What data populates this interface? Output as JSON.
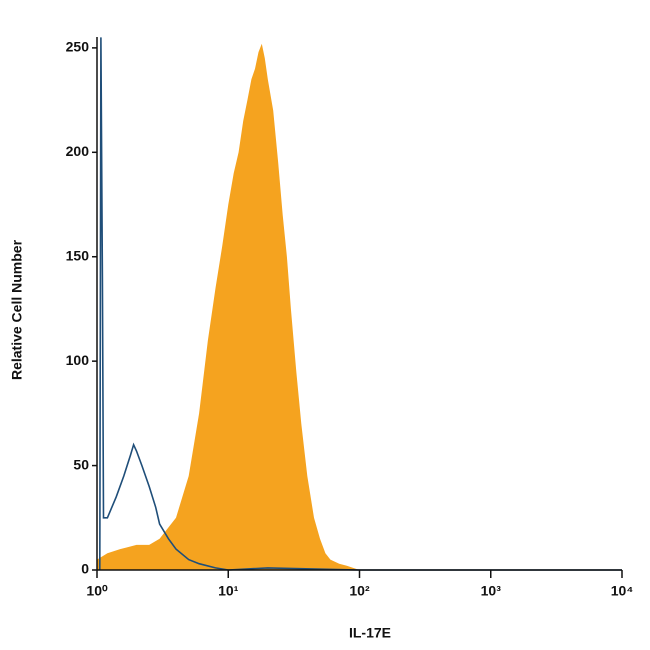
{
  "chart_data": {
    "type": "histogram-overlay",
    "x_label": "IL-17E",
    "y_label": "Relative Cell Number",
    "xlog": true,
    "xlim": [
      1,
      10000
    ],
    "xticks": [
      {
        "value": 1,
        "label": "10⁰"
      },
      {
        "value": 10,
        "label": "10¹"
      },
      {
        "value": 100,
        "label": "10²"
      },
      {
        "value": 1000,
        "label": "10³"
      },
      {
        "value": 10000,
        "label": "10⁴"
      }
    ],
    "ylim": [
      0,
      260
    ],
    "yticks": [
      0,
      50,
      100,
      150,
      200,
      250
    ],
    "series": [
      {
        "color": "#f5a31f",
        "fill": true,
        "x": [
          1,
          1.2,
          1.5,
          2,
          2.5,
          3,
          4,
          5,
          6,
          7,
          8,
          9,
          10,
          11,
          12,
          13,
          14,
          15,
          16,
          17,
          18,
          19,
          20,
          22,
          24,
          26,
          28,
          30,
          33,
          36,
          40,
          45,
          50,
          55,
          60,
          70,
          80,
          100
        ],
        "values": [
          5,
          8,
          10,
          12,
          12,
          15,
          25,
          45,
          75,
          110,
          135,
          155,
          175,
          190,
          200,
          215,
          225,
          235,
          240,
          248,
          252,
          245,
          235,
          220,
          195,
          170,
          150,
          125,
          95,
          70,
          45,
          25,
          15,
          8,
          5,
          3,
          2,
          0
        ]
      },
      {
        "color": "#1f4e79",
        "fill": false,
        "x": [
          1.05,
          1.07,
          1.1,
          1.12,
          1.2,
          1.4,
          1.6,
          1.8,
          1.9,
          2,
          2.2,
          2.5,
          2.8,
          3,
          3.5,
          4,
          5,
          6,
          8,
          10,
          20,
          100,
          1000,
          10000
        ],
        "values": [
          0,
          255,
          140,
          25,
          25,
          35,
          45,
          55,
          60,
          57,
          50,
          40,
          30,
          22,
          15,
          10,
          5,
          3,
          1,
          0,
          1,
          0,
          0,
          0
        ]
      }
    ]
  }
}
